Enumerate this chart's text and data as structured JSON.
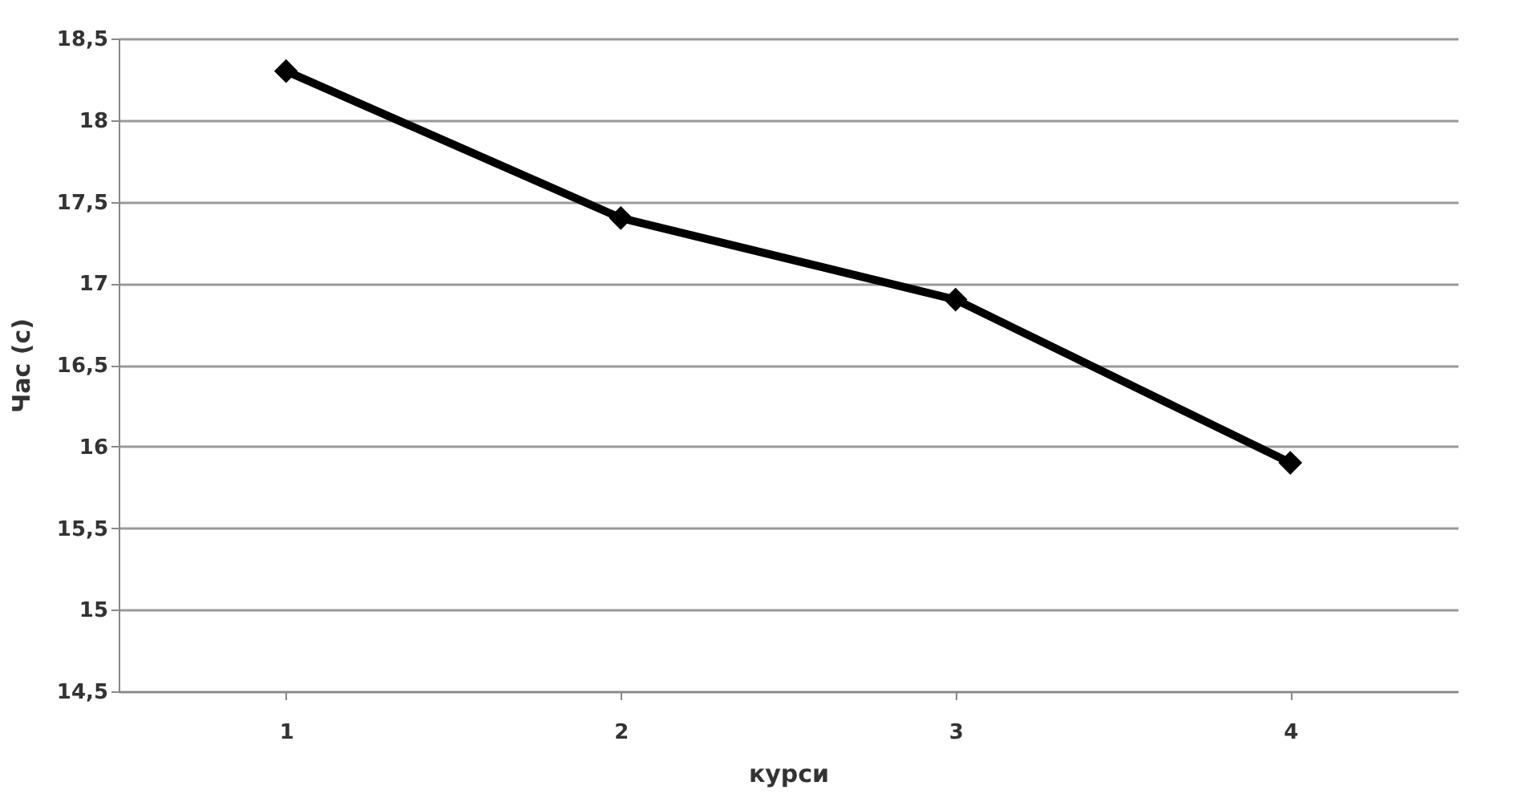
{
  "chart_data": {
    "type": "line",
    "xlabel": "курси",
    "ylabel": "Час (с)",
    "categories": [
      "1",
      "2",
      "3",
      "4"
    ],
    "series": [
      {
        "color": "#000000",
        "values": [
          18.3,
          17.4,
          16.9,
          15.9
        ]
      }
    ],
    "ylim": [
      14.5,
      18.5
    ],
    "yticks": [
      {
        "value": 14.5,
        "label": "14,5"
      },
      15,
      {
        "value": 15.5,
        "label": "15,5"
      },
      16,
      {
        "value": 16.5,
        "label": "16,5"
      },
      17,
      {
        "value": 17.5,
        "label": "17,5"
      },
      18,
      {
        "value": 18.5,
        "label": "18,5"
      }
    ],
    "grid": "y",
    "marker": "diamond",
    "line_style": "solid"
  }
}
